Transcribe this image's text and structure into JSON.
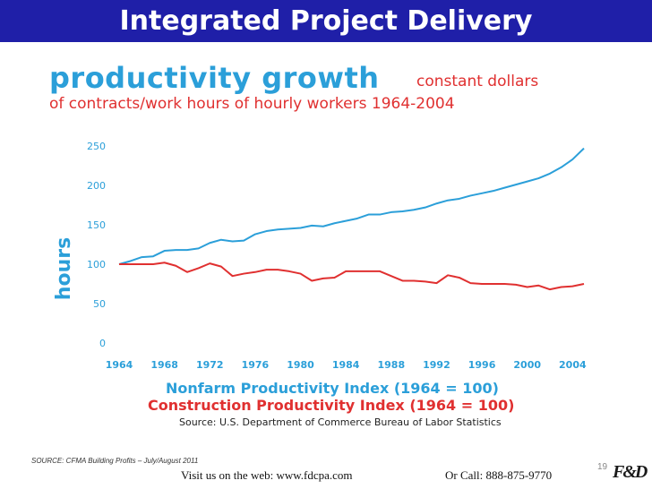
{
  "slide": {
    "title": "Integrated Project Delivery",
    "page_number": "19",
    "source_note": "SOURCE: CFMA Building Profits – July/August 2011",
    "footer_web": "Visit us on the web: www.fdcpa.com",
    "footer_call": "Or Call: 888-875-9770",
    "logo_text": "F&D"
  },
  "colors": {
    "title_bar": "#1f1fa8",
    "nonfarm": "#2b9fd9",
    "construction": "#e03030"
  },
  "chart_data": {
    "type": "line",
    "title": "productivity growth",
    "title_suffix": "constant dollars",
    "subtitle": "of contracts/work hours of hourly workers 1964-2004",
    "ylabel": "hours",
    "xlabel": "",
    "xlim": [
      1964,
      2005
    ],
    "ylim": [
      0,
      250
    ],
    "x_ticks": [
      1964,
      1968,
      1972,
      1976,
      1980,
      1984,
      1988,
      1992,
      1996,
      2000,
      2004
    ],
    "y_ticks": [
      0,
      50,
      100,
      150,
      200,
      250
    ],
    "grid": false,
    "series": [
      {
        "name": "Nonfarm Productivity Index (1964 = 100)",
        "color": "#2b9fd9",
        "x": [
          1964,
          1965,
          1966,
          1967,
          1968,
          1969,
          1970,
          1971,
          1972,
          1973,
          1974,
          1975,
          1976,
          1977,
          1978,
          1979,
          1980,
          1981,
          1982,
          1983,
          1984,
          1985,
          1986,
          1987,
          1988,
          1989,
          1990,
          1991,
          1992,
          1993,
          1994,
          1995,
          1996,
          1997,
          1998,
          1999,
          2000,
          2001,
          2002,
          2003,
          2004,
          2005
        ],
        "values": [
          100,
          104,
          109,
          110,
          117,
          118,
          118,
          120,
          127,
          131,
          129,
          130,
          138,
          142,
          144,
          145,
          146,
          149,
          148,
          152,
          155,
          158,
          163,
          163,
          166,
          167,
          169,
          172,
          177,
          181,
          183,
          187,
          190,
          193,
          197,
          201,
          205,
          209,
          215,
          223,
          233,
          247
        ]
      },
      {
        "name": "Construction Productivity Index (1964 = 100)",
        "color": "#e03030",
        "x": [
          1964,
          1965,
          1966,
          1967,
          1968,
          1969,
          1970,
          1971,
          1972,
          1973,
          1974,
          1975,
          1976,
          1977,
          1978,
          1979,
          1980,
          1981,
          1982,
          1983,
          1984,
          1985,
          1986,
          1987,
          1988,
          1989,
          1990,
          1991,
          1992,
          1993,
          1994,
          1995,
          1996,
          1997,
          1998,
          1999,
          2000,
          2001,
          2002,
          2003,
          2004,
          2005
        ],
        "values": [
          100,
          100,
          100,
          100,
          102,
          98,
          90,
          95,
          101,
          97,
          85,
          88,
          90,
          93,
          93,
          91,
          88,
          79,
          82,
          83,
          91,
          91,
          91,
          91,
          85,
          79,
          79,
          78,
          76,
          86,
          83,
          76,
          75,
          75,
          75,
          74,
          71,
          73,
          68,
          71,
          72,
          75
        ]
      }
    ],
    "source": "Source: U.S. Department of Commerce Bureau of Labor Statistics"
  }
}
